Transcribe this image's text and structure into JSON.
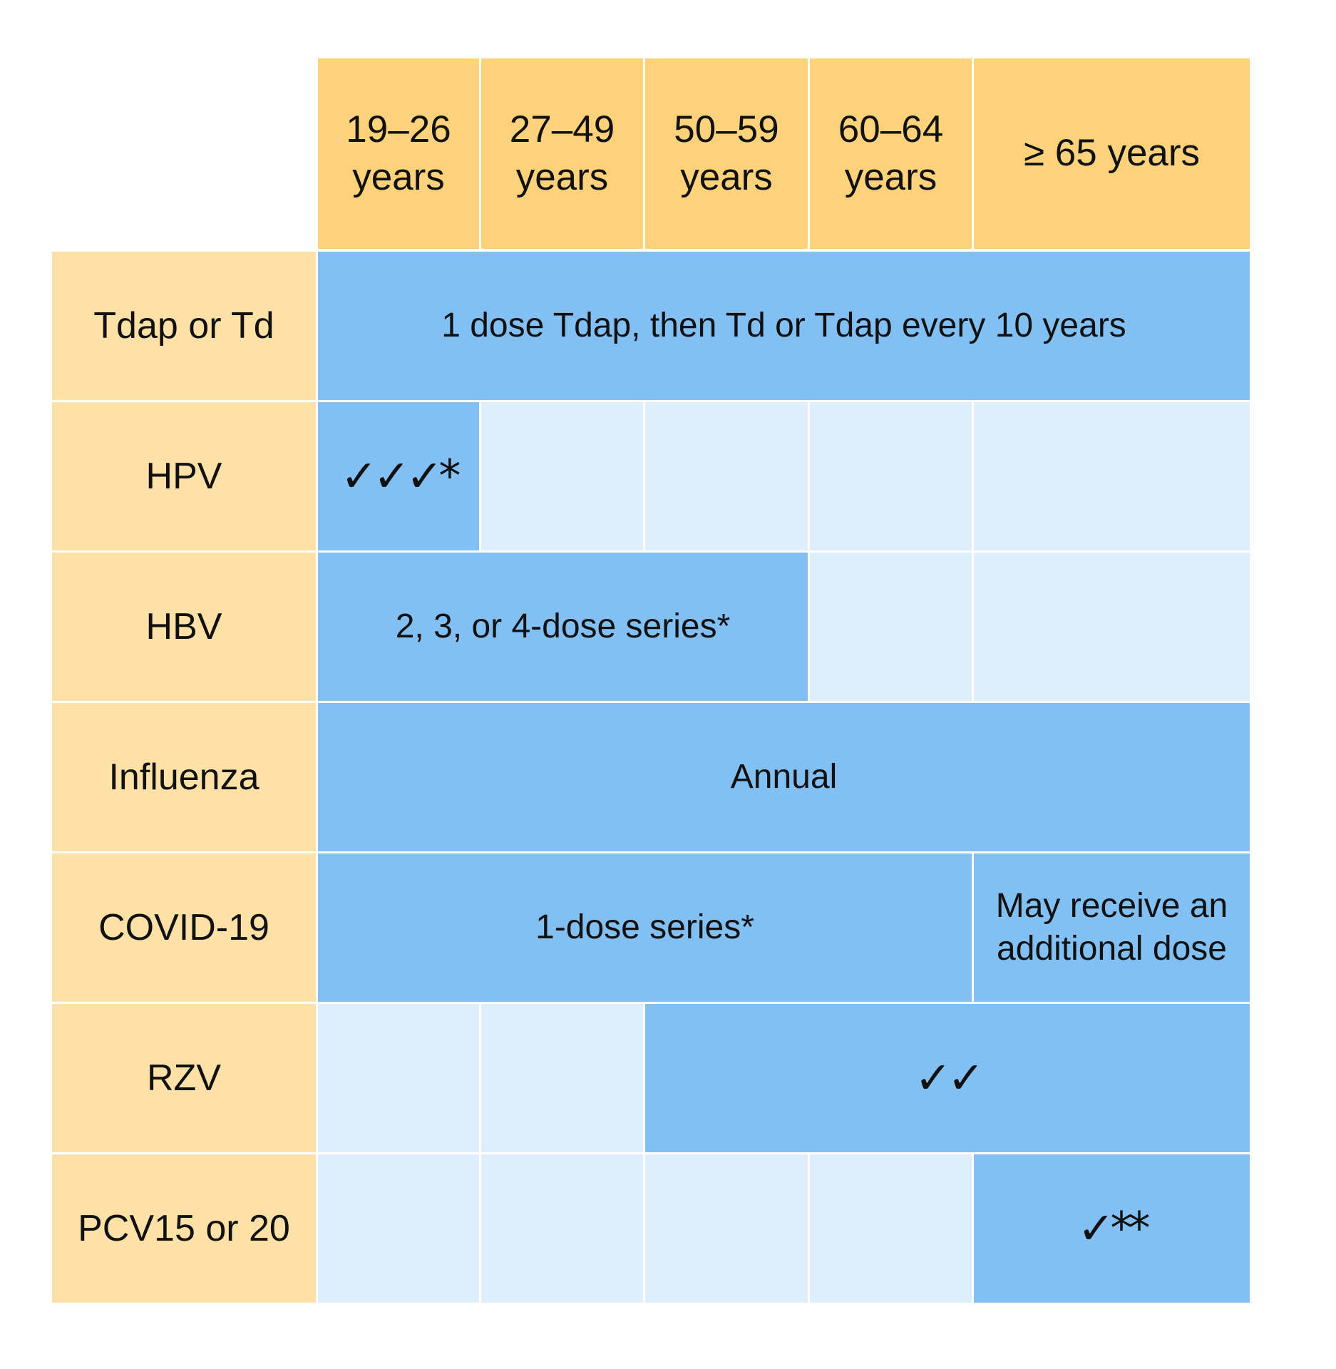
{
  "table": {
    "columns": [
      "19–26 years",
      "27–49 years",
      "50–59 years",
      "60–64 years",
      "≥ 65 years"
    ],
    "rows": [
      {
        "label": "Tdap or Td",
        "cells": [
          {
            "span": 5,
            "recommended": true,
            "text": "1 dose Tdap, then Td or Tdap every 10 years"
          }
        ]
      },
      {
        "label": "HPV",
        "cells": [
          {
            "span": 1,
            "recommended": true,
            "text": "✓✓✓*",
            "check": true
          },
          {
            "span": 1,
            "recommended": false
          },
          {
            "span": 1,
            "recommended": false
          },
          {
            "span": 1,
            "recommended": false
          },
          {
            "span": 1,
            "recommended": false
          }
        ]
      },
      {
        "label": "HBV",
        "cells": [
          {
            "span": 3,
            "recommended": true,
            "text": "2, 3, or 4-dose series*"
          },
          {
            "span": 1,
            "recommended": false
          },
          {
            "span": 1,
            "recommended": false
          }
        ]
      },
      {
        "label": "Influenza",
        "cells": [
          {
            "span": 5,
            "recommended": true,
            "text": "Annual"
          }
        ]
      },
      {
        "label": "COVID-19",
        "cells": [
          {
            "span": 4,
            "recommended": true,
            "text": "1-dose series*"
          },
          {
            "span": 1,
            "recommended": true,
            "text": "May receive an additional dose"
          }
        ]
      },
      {
        "label": "RZV",
        "cells": [
          {
            "span": 1,
            "recommended": false
          },
          {
            "span": 1,
            "recommended": false
          },
          {
            "span": 3,
            "recommended": true,
            "text": "✓✓",
            "check": true
          }
        ]
      },
      {
        "label": "PCV15 or 20",
        "cells": [
          {
            "span": 1,
            "recommended": false
          },
          {
            "span": 1,
            "recommended": false
          },
          {
            "span": 1,
            "recommended": false
          },
          {
            "span": 1,
            "recommended": false
          },
          {
            "span": 1,
            "recommended": true,
            "text": "✓**",
            "check": true
          }
        ]
      }
    ]
  }
}
